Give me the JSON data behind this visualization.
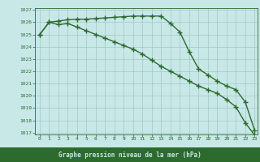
{
  "x": [
    0,
    1,
    2,
    3,
    4,
    5,
    6,
    7,
    8,
    9,
    10,
    11,
    12,
    13,
    14,
    15,
    16,
    17,
    18,
    19,
    20,
    21,
    22,
    23
  ],
  "line1": [
    1025.0,
    1026.0,
    1026.1,
    1026.2,
    1026.25,
    1026.25,
    1026.3,
    1026.35,
    1026.4,
    1026.45,
    1026.5,
    1026.5,
    1026.5,
    1026.5,
    1025.9,
    1025.2,
    1023.6,
    1022.2,
    1021.7,
    1021.2,
    1020.8,
    1020.5,
    1019.5,
    1017.2
  ],
  "line2": [
    1025.0,
    1026.0,
    1025.8,
    1025.9,
    1025.6,
    1025.3,
    1025.0,
    1024.7,
    1024.4,
    1024.1,
    1023.8,
    1023.4,
    1022.9,
    1022.4,
    1022.0,
    1021.6,
    1021.2,
    1020.8,
    1020.5,
    1020.2,
    1019.7,
    1019.1,
    1017.8,
    1016.8
  ],
  "ylim_min": 1017,
  "ylim_max": 1027,
  "yticks": [
    1017,
    1018,
    1019,
    1020,
    1021,
    1022,
    1023,
    1024,
    1025,
    1026,
    1027
  ],
  "xticks": [
    0,
    1,
    2,
    3,
    4,
    5,
    6,
    7,
    8,
    9,
    10,
    11,
    12,
    13,
    14,
    15,
    16,
    17,
    18,
    19,
    20,
    21,
    22,
    23
  ],
  "line_color": "#2d6a2d",
  "bg_color": "#c8e8e8",
  "grid_color": "#a0c8c8",
  "xlabel": "Graphe pression niveau de la mer (hPa)",
  "xlabel_bg": "#2d6a2d",
  "xlabel_fg": "#c8e8e8",
  "marker": "+",
  "marker_size": 4,
  "linewidth": 1.0
}
